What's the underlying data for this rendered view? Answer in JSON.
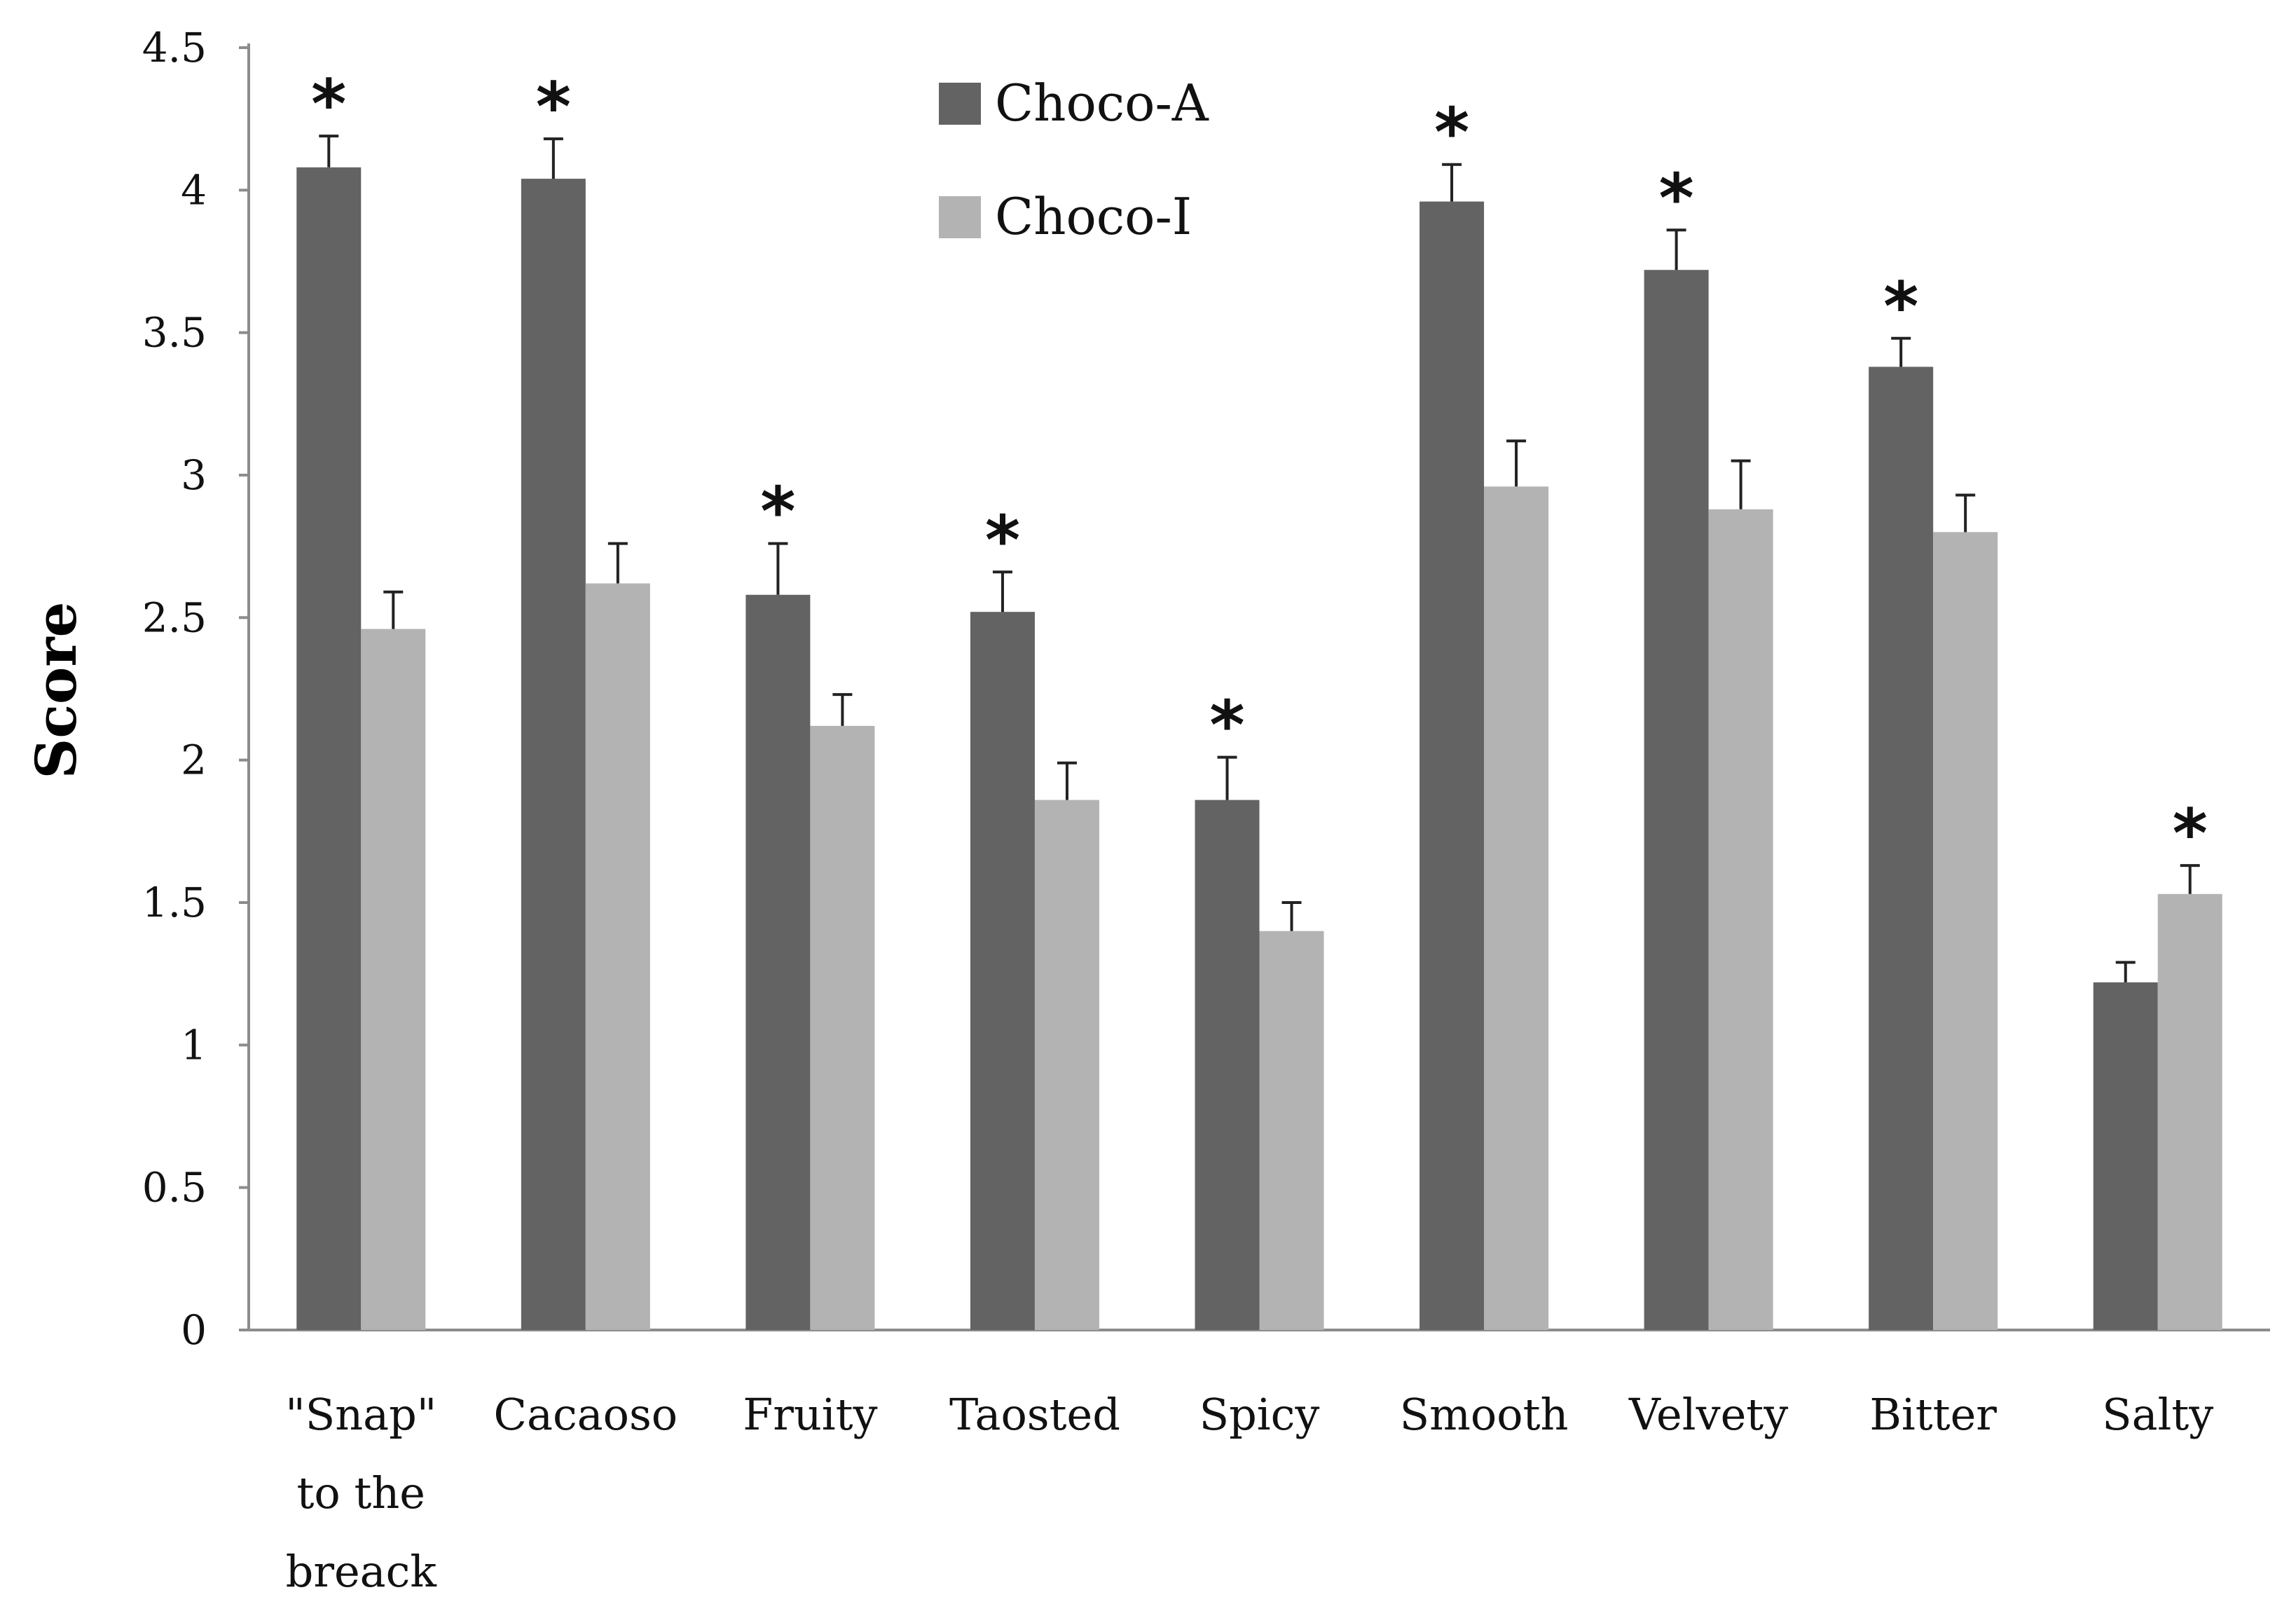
{
  "chart_data": {
    "type": "bar",
    "title": "",
    "xlabel": "",
    "ylabel": "Score",
    "ylim": [
      0,
      4.5
    ],
    "yticks": [
      "0",
      "0.5",
      "1",
      "1.5",
      "2",
      "2.5",
      "3",
      "3.5",
      "4",
      "4.5"
    ],
    "categories": [
      [
        "\"Snap\"",
        "to the",
        "breack"
      ],
      [
        "Cacaoso"
      ],
      [
        "Fruity"
      ],
      [
        "Taosted"
      ],
      [
        "Spicy"
      ],
      [
        "Smooth"
      ],
      [
        "Velvety"
      ],
      [
        "Bitter"
      ],
      [
        "Salty"
      ]
    ],
    "series": [
      {
        "name": "Choco-A",
        "color": "#636363",
        "values": [
          4.08,
          4.04,
          2.58,
          2.52,
          1.86,
          3.96,
          3.72,
          3.38,
          1.22
        ],
        "errors": [
          0.11,
          0.14,
          0.18,
          0.14,
          0.15,
          0.13,
          0.14,
          0.1,
          0.07
        ],
        "significant": [
          true,
          true,
          true,
          true,
          true,
          true,
          true,
          true,
          false
        ]
      },
      {
        "name": "Choco-I",
        "color": "#b3b3b3",
        "values": [
          2.46,
          2.62,
          2.12,
          1.86,
          1.4,
          2.96,
          2.88,
          2.8,
          1.53
        ],
        "errors": [
          0.13,
          0.14,
          0.11,
          0.13,
          0.1,
          0.16,
          0.17,
          0.13,
          0.1
        ],
        "significant": [
          false,
          false,
          false,
          false,
          false,
          false,
          false,
          false,
          true
        ]
      }
    ],
    "significance_marker": "*",
    "legend_position": "top-center"
  }
}
